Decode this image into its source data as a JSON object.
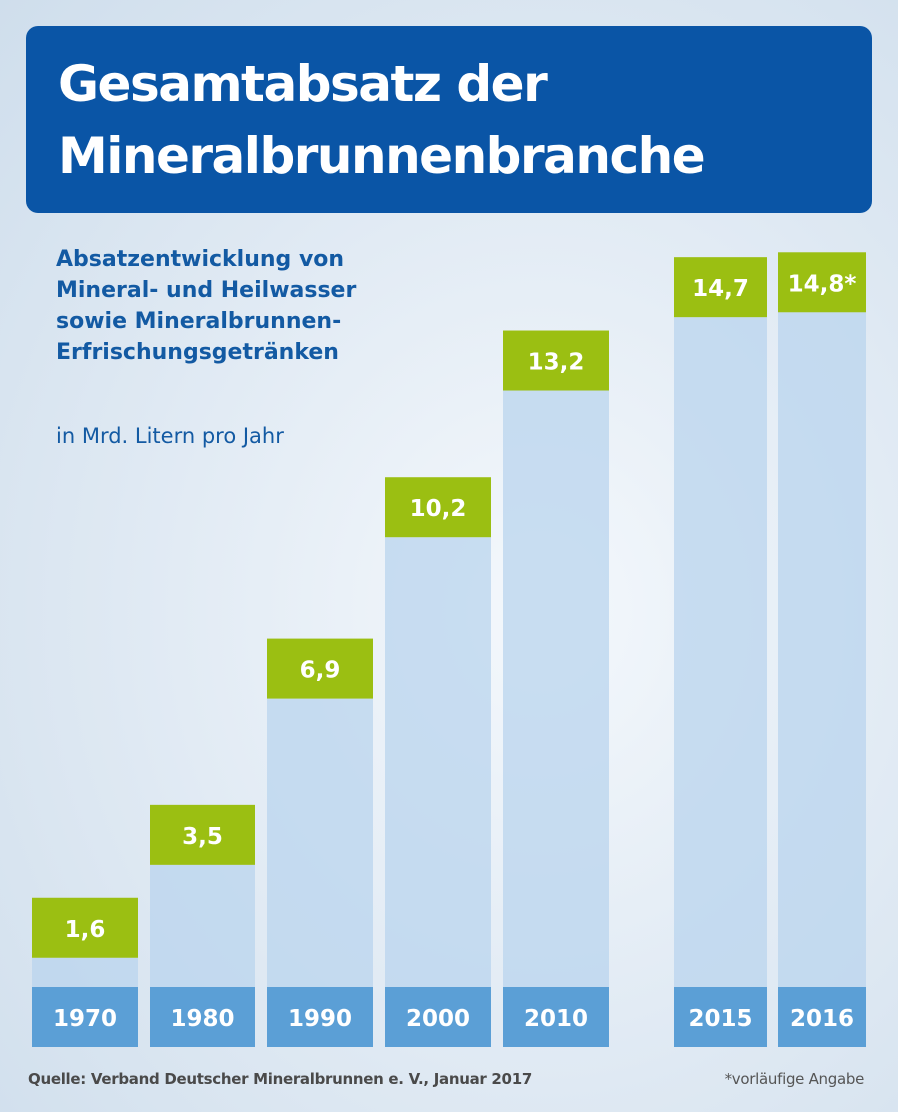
{
  "title": "Gesamtabsatz der Mineralbrunnenbranche",
  "subtitle": "Absatzentwicklung von\nMineral- und Heilwasser\nsowie Mineralbrunnen-\nErfrischungsgetränken",
  "unit": "in Mrd. Litern pro Jahr",
  "source": "Quelle: Verband Deutscher Mineralbrunnen e. V., Januar 2017",
  "footnote": "*vorläufige Angabe",
  "colors": {
    "title_bg": "#0a55a6",
    "value_box": "#9bbf12",
    "year_band": "#5b9fd6",
    "bar": "#b9d4ee"
  },
  "chart_data": {
    "type": "bar",
    "title": "Gesamtabsatz der Mineralbrunnenbranche",
    "ylabel": "in Mrd. Litern pro Jahr",
    "categories": [
      "1970",
      "1980",
      "1990",
      "2000",
      "2010",
      "2015",
      "2016"
    ],
    "values": [
      1.6,
      3.5,
      6.9,
      10.2,
      13.2,
      14.7,
      14.8
    ],
    "value_labels": [
      "1,6",
      "3,5",
      "6,9",
      "10,2",
      "13,2",
      "14,7",
      "14,8*"
    ],
    "grid": false
  }
}
